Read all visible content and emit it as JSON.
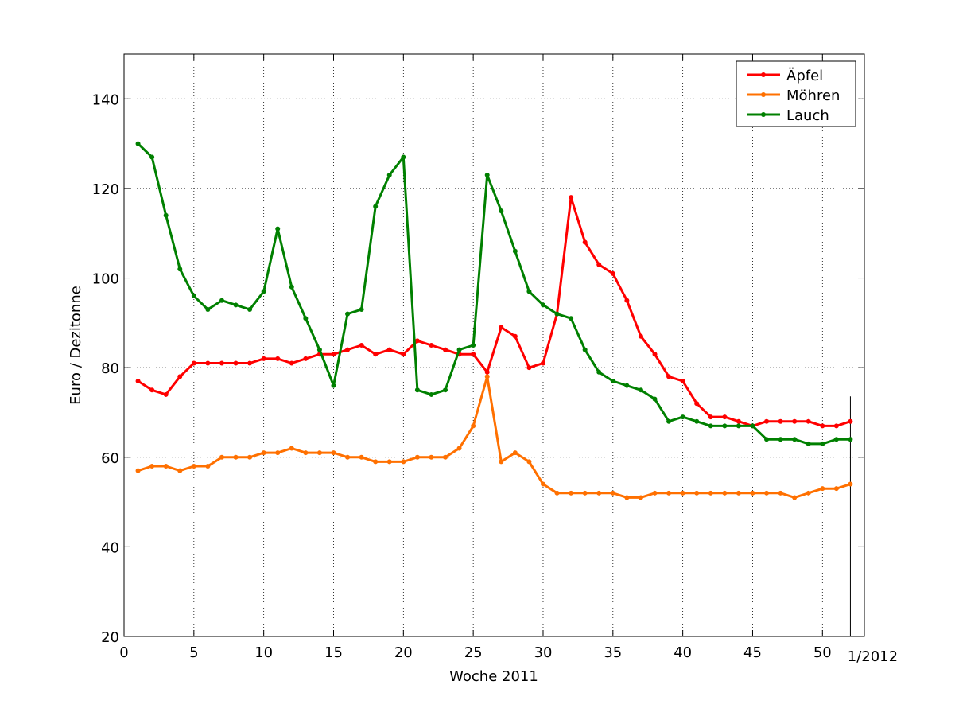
{
  "chart_data": {
    "type": "line",
    "xlabel": "Woche 2011",
    "ylabel": "Euro / Dezitonne",
    "xlim": [
      0,
      53
    ],
    "ylim": [
      20,
      150
    ],
    "x_ticks": [
      0,
      5,
      10,
      15,
      20,
      25,
      30,
      35,
      40,
      45,
      50
    ],
    "y_ticks": [
      20,
      40,
      60,
      80,
      100,
      120,
      140
    ],
    "extra_x_tick": {
      "x": 52,
      "label": "1/2012"
    },
    "grid": true,
    "legend_position": "top-right",
    "x": [
      1,
      2,
      3,
      4,
      5,
      6,
      7,
      8,
      9,
      10,
      11,
      12,
      13,
      14,
      15,
      16,
      17,
      18,
      19,
      20,
      21,
      22,
      23,
      24,
      25,
      26,
      27,
      28,
      29,
      30,
      31,
      32,
      33,
      34,
      35,
      36,
      37,
      38,
      39,
      40,
      41,
      42,
      43,
      44,
      45,
      46,
      47,
      48,
      49,
      50,
      51,
      52
    ],
    "series": [
      {
        "name": "Äpfel",
        "color": "#ff0000",
        "values": [
          77,
          75,
          74,
          78,
          81,
          81,
          81,
          81,
          81,
          82,
          82,
          81,
          82,
          83,
          83,
          84,
          85,
          83,
          84,
          83,
          86,
          85,
          84,
          83,
          83,
          79,
          89,
          87,
          80,
          81,
          92,
          118,
          108,
          103,
          101,
          95,
          87,
          83,
          78,
          77,
          72,
          69,
          69,
          68,
          67,
          68,
          68,
          68,
          68,
          67,
          67,
          68
        ]
      },
      {
        "name": "Möhren",
        "color": "#ff7000",
        "values": [
          57,
          58,
          58,
          57,
          58,
          58,
          60,
          60,
          60,
          61,
          61,
          62,
          61,
          61,
          61,
          60,
          60,
          59,
          59,
          59,
          60,
          60,
          60,
          62,
          67,
          78,
          59,
          61,
          59,
          54,
          52,
          52,
          52,
          52,
          52,
          51,
          51,
          52,
          52,
          52,
          52,
          52,
          52,
          52,
          52,
          52,
          52,
          51,
          52,
          53,
          53,
          54
        ]
      },
      {
        "name": "Lauch",
        "color": "#008000",
        "values": [
          130,
          127,
          114,
          102,
          96,
          93,
          95,
          94,
          93,
          97,
          111,
          98,
          91,
          84,
          76,
          92,
          93,
          116,
          123,
          127,
          75,
          74,
          75,
          84,
          85,
          123,
          115,
          106,
          97,
          94,
          92,
          91,
          84,
          79,
          77,
          76,
          75,
          73,
          68,
          69,
          68,
          67,
          67,
          67,
          67,
          64,
          64,
          64,
          63,
          63,
          64,
          64
        ]
      }
    ]
  }
}
